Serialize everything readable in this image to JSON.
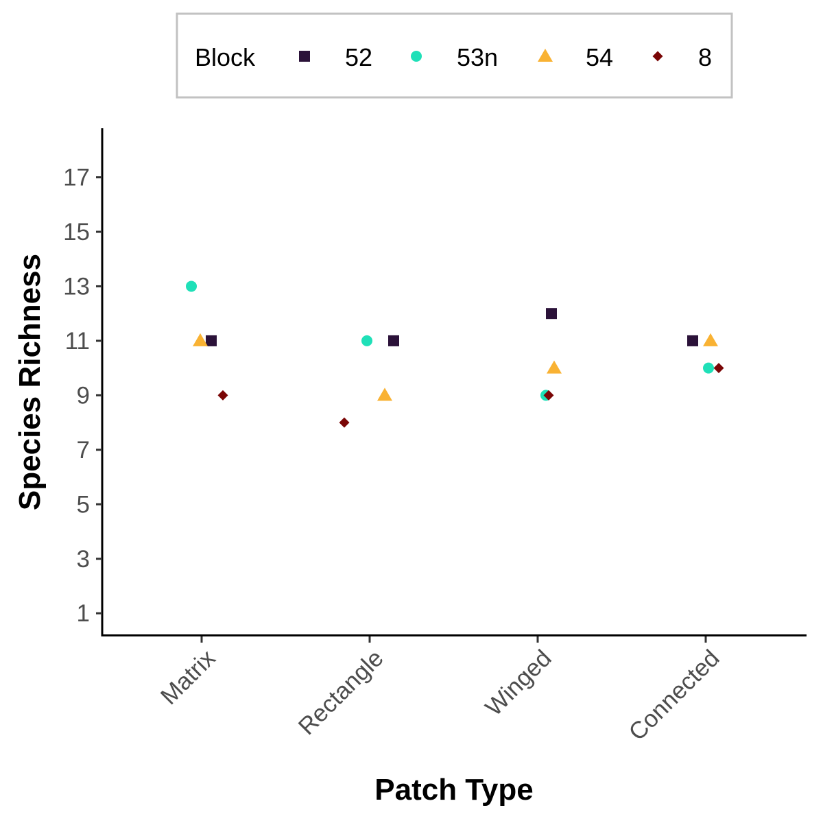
{
  "chart_data": {
    "type": "scatter",
    "xlabel": "Patch Type",
    "ylabel": "Species Richness",
    "categories": [
      "Matrix",
      "Rectangle",
      "Winged",
      "Connected"
    ],
    "yticks": [
      1,
      3,
      5,
      7,
      9,
      11,
      13,
      15,
      17
    ],
    "ylim": [
      0.2,
      18.8
    ],
    "grid": false,
    "legend": {
      "title": "Block",
      "position": "top"
    },
    "series": [
      {
        "name": "52",
        "shape": "square",
        "color": "#2b1239",
        "points": [
          {
            "category": "Matrix",
            "y": 11
          },
          {
            "category": "Rectangle",
            "y": 11
          },
          {
            "category": "Winged",
            "y": 12
          },
          {
            "category": "Connected",
            "y": 11
          }
        ]
      },
      {
        "name": "53n",
        "shape": "circle",
        "color": "#1fe0b8",
        "points": [
          {
            "category": "Matrix",
            "y": 13
          },
          {
            "category": "Rectangle",
            "y": 11
          },
          {
            "category": "Winged",
            "y": 9
          },
          {
            "category": "Connected",
            "y": 10
          }
        ]
      },
      {
        "name": "54",
        "shape": "triangle",
        "color": "#f9b233",
        "points": [
          {
            "category": "Matrix",
            "y": 11
          },
          {
            "category": "Rectangle",
            "y": 9
          },
          {
            "category": "Winged",
            "y": 10
          },
          {
            "category": "Connected",
            "y": 11
          }
        ]
      },
      {
        "name": "8",
        "shape": "diamond",
        "color": "#7a0606",
        "points": [
          {
            "category": "Matrix",
            "y": 9
          },
          {
            "category": "Rectangle",
            "y": 8
          },
          {
            "category": "Winged",
            "y": 9
          },
          {
            "category": "Connected",
            "y": 10
          }
        ]
      }
    ]
  }
}
